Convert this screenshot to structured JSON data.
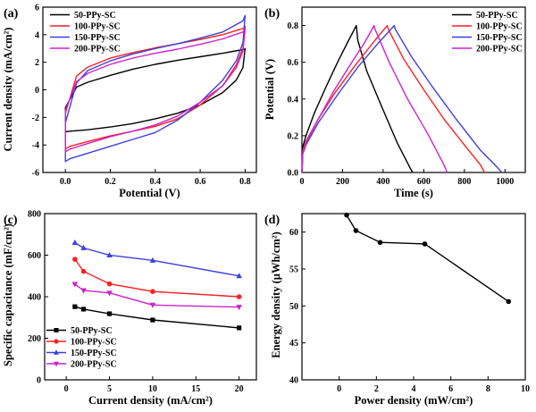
{
  "colors": {
    "50-PPy-SC": "#000000",
    "100-PPy-SC": "#ff1f1f",
    "150-PPy-SC": "#3f3fe0",
    "200-PPy-SC": "#cc22cc"
  },
  "chart_data": [
    {
      "panel": "(a)",
      "type": "line",
      "xlabel": "Potential (V)",
      "ylabel": "Current density (mA/cm²)",
      "xlim": [
        -0.1,
        0.85
      ],
      "ylim": [
        -6,
        6
      ],
      "xticks": [
        0.0,
        0.2,
        0.4,
        0.6,
        0.8
      ],
      "yticks": [
        -6,
        -4,
        -2,
        0,
        2,
        4,
        6
      ],
      "legend_position": "top-left",
      "series": [
        {
          "name": "50-PPy-SC",
          "upper": [
            [
              0,
              -1.3
            ],
            [
              0.05,
              0.2
            ],
            [
              0.1,
              0.55
            ],
            [
              0.2,
              1.05
            ],
            [
              0.3,
              1.5
            ],
            [
              0.4,
              1.85
            ],
            [
              0.5,
              2.15
            ],
            [
              0.6,
              2.4
            ],
            [
              0.7,
              2.65
            ],
            [
              0.8,
              2.95
            ],
            [
              0.8,
              3.0
            ]
          ],
          "lower": [
            [
              0.8,
              3.0
            ],
            [
              0.79,
              1.6
            ],
            [
              0.76,
              0.7
            ],
            [
              0.7,
              -0.2
            ],
            [
              0.6,
              -1.1
            ],
            [
              0.5,
              -1.7
            ],
            [
              0.4,
              -2.1
            ],
            [
              0.3,
              -2.45
            ],
            [
              0.2,
              -2.7
            ],
            [
              0.1,
              -2.9
            ],
            [
              0.02,
              -3.0
            ],
            [
              0,
              -3.05
            ],
            [
              0,
              -1.3
            ]
          ]
        },
        {
          "name": "100-PPy-SC",
          "upper": [
            [
              0,
              -1.7
            ],
            [
              0.05,
              1.0
            ],
            [
              0.1,
              1.65
            ],
            [
              0.2,
              2.3
            ],
            [
              0.3,
              2.7
            ],
            [
              0.4,
              3.05
            ],
            [
              0.5,
              3.35
            ],
            [
              0.6,
              3.65
            ],
            [
              0.7,
              4.0
            ],
            [
              0.8,
              4.5
            ],
            [
              0.8,
              4.6
            ]
          ],
          "lower": [
            [
              0.8,
              4.6
            ],
            [
              0.79,
              3.0
            ],
            [
              0.76,
              1.8
            ],
            [
              0.7,
              0.3
            ],
            [
              0.6,
              -1.1
            ],
            [
              0.5,
              -2.1
            ],
            [
              0.4,
              -2.65
            ],
            [
              0.3,
              -3.0
            ],
            [
              0.2,
              -3.35
            ],
            [
              0.1,
              -3.75
            ],
            [
              0.02,
              -4.1
            ],
            [
              0,
              -4.3
            ],
            [
              0,
              -1.7
            ]
          ]
        },
        {
          "name": "150-PPy-SC",
          "upper": [
            [
              0,
              -2.4
            ],
            [
              0.05,
              0.5
            ],
            [
              0.1,
              1.4
            ],
            [
              0.2,
              2.1
            ],
            [
              0.3,
              2.6
            ],
            [
              0.4,
              3.0
            ],
            [
              0.5,
              3.35
            ],
            [
              0.6,
              3.75
            ],
            [
              0.7,
              4.2
            ],
            [
              0.79,
              5.0
            ],
            [
              0.8,
              5.4
            ]
          ],
          "lower": [
            [
              0.8,
              5.4
            ],
            [
              0.79,
              3.4
            ],
            [
              0.76,
              2.1
            ],
            [
              0.7,
              0.7
            ],
            [
              0.6,
              -0.9
            ],
            [
              0.5,
              -2.2
            ],
            [
              0.4,
              -3.1
            ],
            [
              0.3,
              -3.6
            ],
            [
              0.2,
              -4.1
            ],
            [
              0.1,
              -4.6
            ],
            [
              0.02,
              -5.0
            ],
            [
              0,
              -5.2
            ],
            [
              0,
              -2.4
            ]
          ]
        },
        {
          "name": "200-PPy-SC",
          "upper": [
            [
              0,
              -1.5
            ],
            [
              0.05,
              0.6
            ],
            [
              0.1,
              1.2
            ],
            [
              0.2,
              1.85
            ],
            [
              0.3,
              2.3
            ],
            [
              0.4,
              2.65
            ],
            [
              0.5,
              2.95
            ],
            [
              0.6,
              3.3
            ],
            [
              0.7,
              3.7
            ],
            [
              0.79,
              4.2
            ],
            [
              0.8,
              4.4
            ]
          ],
          "lower": [
            [
              0.8,
              4.4
            ],
            [
              0.79,
              2.8
            ],
            [
              0.76,
              1.6
            ],
            [
              0.7,
              0.3
            ],
            [
              0.6,
              -0.9
            ],
            [
              0.5,
              -1.9
            ],
            [
              0.4,
              -2.55
            ],
            [
              0.3,
              -3.0
            ],
            [
              0.2,
              -3.4
            ],
            [
              0.1,
              -3.9
            ],
            [
              0.02,
              -4.3
            ],
            [
              0,
              -4.5
            ],
            [
              0,
              -1.5
            ]
          ]
        }
      ]
    },
    {
      "panel": "(b)",
      "type": "line",
      "xlabel": "Time (s)",
      "ylabel": "Potential (V)",
      "xlim": [
        0,
        1100
      ],
      "ylim": [
        0,
        0.9
      ],
      "xticks": [
        0,
        200,
        400,
        600,
        800,
        1000
      ],
      "yticks": [
        0.0,
        0.2,
        0.4,
        0.6,
        0.8
      ],
      "legend_position": "top-right",
      "series": [
        {
          "name": "50-PPy-SC",
          "points": [
            [
              0,
              0
            ],
            [
              4,
              0.14
            ],
            [
              20,
              0.2
            ],
            [
              60,
              0.32
            ],
            [
              120,
              0.47
            ],
            [
              180,
              0.61
            ],
            [
              230,
              0.72
            ],
            [
              268,
              0.8
            ],
            [
              275,
              0.72
            ],
            [
              320,
              0.55
            ],
            [
              400,
              0.34
            ],
            [
              470,
              0.16
            ],
            [
              530,
              0.03
            ],
            [
              545,
              0
            ]
          ]
        },
        {
          "name": "100-PPy-SC",
          "points": [
            [
              0,
              0
            ],
            [
              4,
              0.12
            ],
            [
              20,
              0.17
            ],
            [
              80,
              0.29
            ],
            [
              160,
              0.43
            ],
            [
              260,
              0.58
            ],
            [
              360,
              0.72
            ],
            [
              420,
              0.8
            ],
            [
              425,
              0.78
            ],
            [
              500,
              0.62
            ],
            [
              600,
              0.45
            ],
            [
              700,
              0.29
            ],
            [
              800,
              0.15
            ],
            [
              880,
              0.04
            ],
            [
              900,
              0
            ]
          ]
        },
        {
          "name": "150-PPy-SC",
          "points": [
            [
              0,
              0
            ],
            [
              4,
              0.1
            ],
            [
              20,
              0.15
            ],
            [
              80,
              0.27
            ],
            [
              180,
              0.43
            ],
            [
              280,
              0.58
            ],
            [
              380,
              0.71
            ],
            [
              455,
              0.8
            ],
            [
              460,
              0.78
            ],
            [
              540,
              0.63
            ],
            [
              640,
              0.47
            ],
            [
              760,
              0.29
            ],
            [
              880,
              0.12
            ],
            [
              960,
              0.03
            ],
            [
              985,
              0
            ]
          ]
        },
        {
          "name": "200-PPy-SC",
          "points": [
            [
              0,
              0
            ],
            [
              4,
              0.11
            ],
            [
              20,
              0.16
            ],
            [
              80,
              0.29
            ],
            [
              160,
              0.45
            ],
            [
              240,
              0.59
            ],
            [
              310,
              0.71
            ],
            [
              355,
              0.8
            ],
            [
              360,
              0.78
            ],
            [
              430,
              0.6
            ],
            [
              520,
              0.4
            ],
            [
              620,
              0.21
            ],
            [
              700,
              0.04
            ],
            [
              715,
              0
            ]
          ]
        }
      ]
    },
    {
      "panel": "(c)",
      "type": "line",
      "xlabel": "Current density (mA/cm²)",
      "ylabel": "Specific capacitance (mF/cm²)",
      "xlim": [
        -2.5,
        22
      ],
      "ylim": [
        0,
        800
      ],
      "xticks": [
        0,
        5,
        10,
        15,
        20
      ],
      "yticks": [
        0,
        200,
        400,
        600,
        800
      ],
      "legend_position": "bottom-left",
      "series": [
        {
          "name": "50-PPy-SC",
          "marker": "square",
          "x": [
            1,
            2,
            5,
            10,
            20
          ],
          "values": [
            352,
            340,
            318,
            288,
            250
          ]
        },
        {
          "name": "100-PPy-SC",
          "marker": "circle",
          "x": [
            1,
            2,
            5,
            10,
            20
          ],
          "values": [
            580,
            522,
            462,
            425,
            400
          ]
        },
        {
          "name": "150-PPy-SC",
          "marker": "triangle-up",
          "x": [
            1,
            2,
            5,
            10,
            20
          ],
          "values": [
            660,
            635,
            600,
            575,
            500
          ]
        },
        {
          "name": "200-PPy-SC",
          "marker": "triangle-down",
          "x": [
            1,
            2,
            5,
            10,
            20
          ],
          "values": [
            460,
            430,
            418,
            360,
            350
          ]
        }
      ]
    },
    {
      "panel": "(d)",
      "type": "scatter",
      "xlabel": "Power density (mW/cm²)",
      "ylabel": "Energy density (µWh/cm²)",
      "xlim": [
        -2,
        10
      ],
      "ylim": [
        40,
        62.5
      ],
      "xticks": [
        0,
        2,
        4,
        6,
        8,
        10
      ],
      "yticks": [
        40,
        45,
        50,
        55,
        60
      ],
      "series": [
        {
          "name": "",
          "x": [
            0.4,
            0.9,
            2.2,
            4.6,
            9.1
          ],
          "values": [
            62.3,
            60.2,
            58.6,
            58.4,
            50.6
          ]
        }
      ]
    }
  ]
}
